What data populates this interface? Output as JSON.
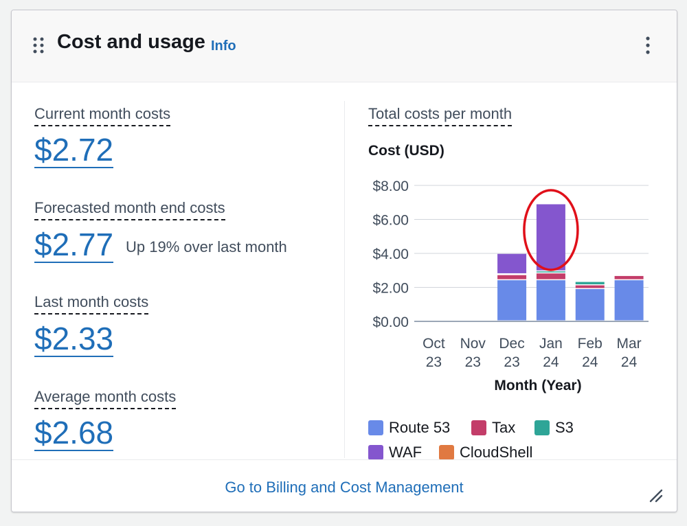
{
  "widget": {
    "title": "Cost and usage",
    "info_label": "Info",
    "menu_icon": "kebab-menu-icon",
    "drag_icon": "drag-handle-icon"
  },
  "metrics": [
    {
      "label": "Current month costs",
      "value": "$2.72"
    },
    {
      "label": "Forecasted month end costs",
      "value": "$2.77",
      "note": "Up 19% over last month"
    },
    {
      "label": "Last month costs",
      "value": "$2.33"
    },
    {
      "label": "Average month costs",
      "value": "$2.68"
    }
  ],
  "chart": {
    "title": "Total costs per month"
  },
  "chart_data": {
    "type": "bar",
    "stacked": true,
    "ylabel": "Cost (USD)",
    "xlabel": "Month (Year)",
    "ylim": [
      0,
      8
    ],
    "yticks": [
      "$0.00",
      "$2.00",
      "$4.00",
      "$6.00",
      "$8.00"
    ],
    "categories": [
      [
        "Oct",
        "23"
      ],
      [
        "Nov",
        "23"
      ],
      [
        "Dec",
        "23"
      ],
      [
        "Jan",
        "24"
      ],
      [
        "Feb",
        "24"
      ],
      [
        "Mar",
        "24"
      ]
    ],
    "series": [
      {
        "name": "Route 53",
        "color": "#688ae8",
        "values": [
          0,
          0,
          2.42,
          2.42,
          1.9,
          2.42
        ]
      },
      {
        "name": "Tax",
        "color": "#c33d69",
        "values": [
          0,
          0,
          0.3,
          0.4,
          0.22,
          0.25
        ]
      },
      {
        "name": "S3",
        "color": "#2ea597",
        "values": [
          0,
          0,
          0.05,
          0.12,
          0.2,
          0.03
        ]
      },
      {
        "name": "WAF",
        "color": "#8456ce",
        "values": [
          0,
          0,
          1.2,
          3.95,
          0,
          0
        ]
      },
      {
        "name": "CloudShell",
        "color": "#e07941",
        "values": [
          0,
          0,
          0.0,
          0.0,
          0.0,
          0.0
        ]
      }
    ],
    "grid": true,
    "legend": "bottom",
    "annotation": {
      "shape": "ellipse",
      "color": "#e0101a",
      "target_category": "Jan 24"
    }
  },
  "footer": {
    "link_label": "Go to Billing and Cost Management",
    "resize_icon": "resize-handle-icon"
  }
}
